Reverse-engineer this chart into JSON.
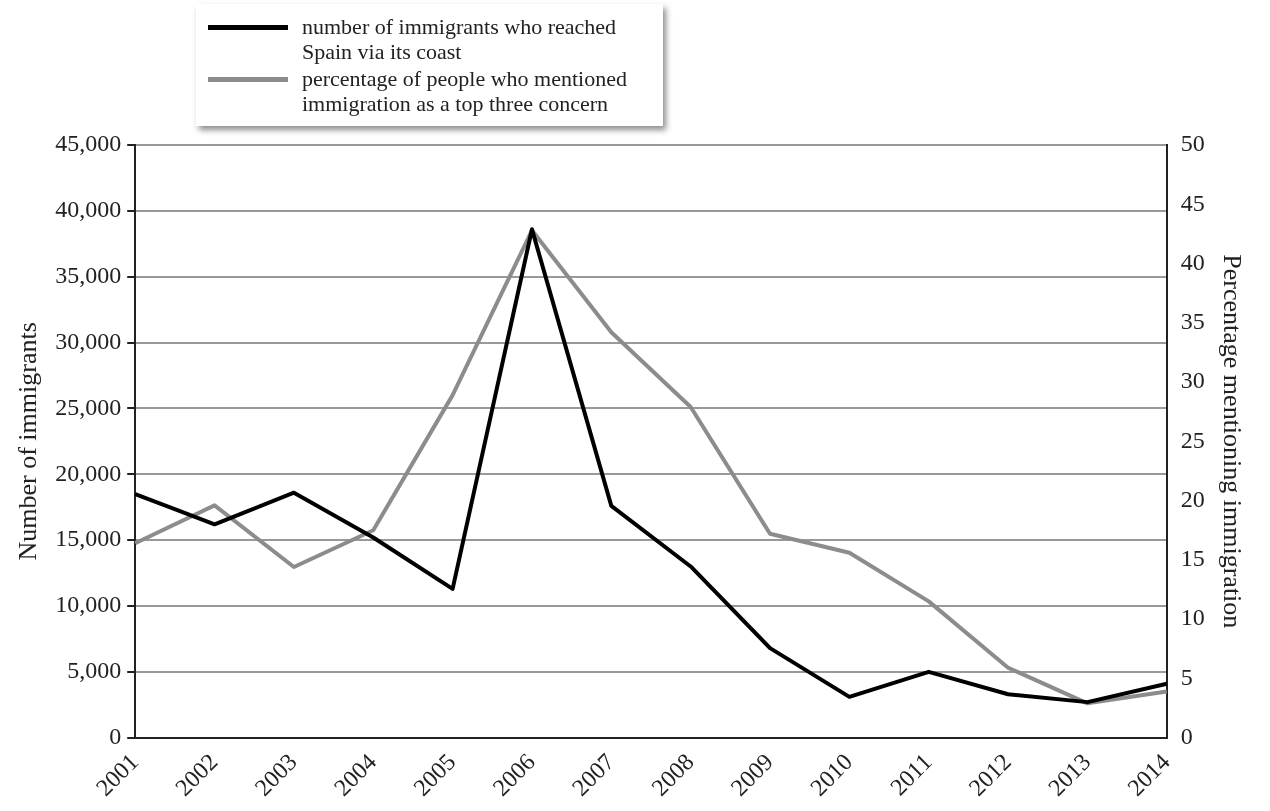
{
  "chart_data": {
    "type": "line",
    "categories": [
      "2001",
      "2002",
      "2003",
      "2004",
      "2005",
      "2006",
      "2007",
      "2008",
      "2009",
      "2010",
      "2011",
      "2012",
      "2013",
      "2014"
    ],
    "series": [
      {
        "name": "number of immigrants who reached Spain via its coast",
        "color": "#000000",
        "values": [
          18500,
          16200,
          18600,
          15200,
          11300,
          38600,
          17600,
          13000,
          6800,
          3100,
          5000,
          3300,
          2700,
          4100
        ]
      },
      {
        "name": "percentage of people who mentioned immigration as a top three concern",
        "color": "#8c8c8c",
        "axis": "y2",
        "values": [
          16.4,
          19.6,
          14.4,
          17.5,
          28.9,
          42.8,
          34.2,
          27.9,
          17.2,
          15.6,
          11.5,
          5.9,
          2.9,
          3.9
        ]
      }
    ],
    "ylabel": "Number of immigrants",
    "y2label": "Percentage mentioning immigration",
    "ylim": [
      0,
      45000
    ],
    "yticks": [
      {
        "value": 0,
        "label": "0"
      },
      {
        "value": 5000,
        "label": "5,000"
      },
      {
        "value": 10000,
        "label": "10,000"
      },
      {
        "value": 15000,
        "label": "15,000"
      },
      {
        "value": 20000,
        "label": "20,000"
      },
      {
        "value": 25000,
        "label": "25,000"
      },
      {
        "value": 30000,
        "label": "30,000"
      },
      {
        "value": 35000,
        "label": "35,000"
      },
      {
        "value": 40000,
        "label": "40,000"
      },
      {
        "value": 45000,
        "label": "45,000"
      }
    ],
    "y2lim": [
      0,
      50
    ],
    "y2ticks": [
      0,
      5,
      10,
      15,
      20,
      25,
      30,
      35,
      40,
      45,
      50
    ],
    "grid": "y",
    "legend": "top left",
    "marker": "none",
    "line_style": "solid"
  }
}
